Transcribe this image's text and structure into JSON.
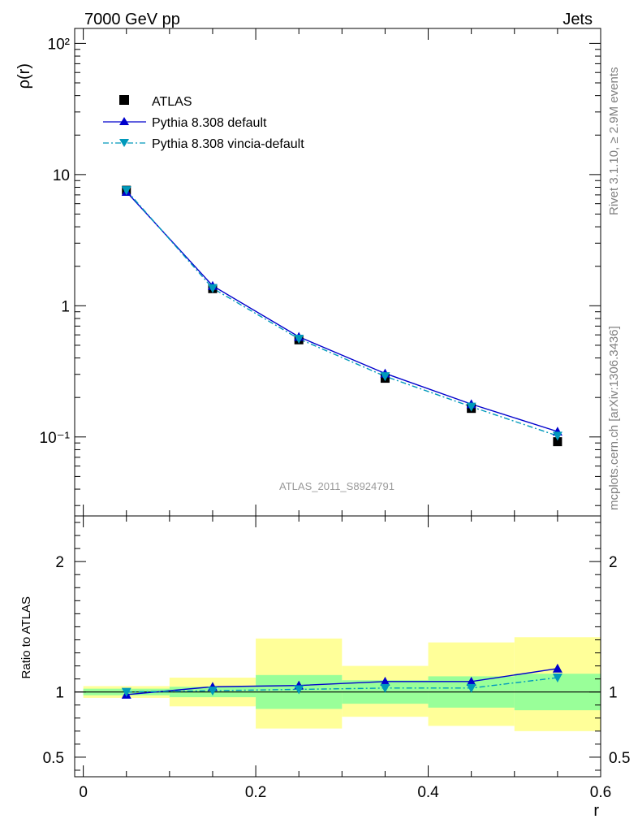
{
  "header": {
    "left": "7000 GeV pp",
    "right": "Jets"
  },
  "side_labels": {
    "rivet": "Rivet 3.1.10, ≥ 2.9M events",
    "source": "mcplots.cern.ch [arXiv:1306.3436]"
  },
  "watermark": "ATLAS_2011_S8924791",
  "colors": {
    "data": "#000000",
    "pythia_default": "#0000cc",
    "pythia_vincia": "#0099bb",
    "band_inner": "#99ff99",
    "band_outer": "#ffff99"
  },
  "chart_data": [
    {
      "type": "line",
      "panel": "main",
      "ylabel": "ρ(r)",
      "xlabel": "",
      "yscale": "log",
      "ylim": [
        0.025,
        130
      ],
      "xlim": [
        -0.01,
        0.6
      ],
      "y_tick_labels": [
        "10⁻¹",
        "1",
        "10",
        "10²"
      ],
      "legend_position": "top-left",
      "x": [
        0.05,
        0.15,
        0.25,
        0.35,
        0.45,
        0.55
      ],
      "series": [
        {
          "name": "ATLAS",
          "marker": "square",
          "values": [
            7.6,
            1.35,
            0.55,
            0.28,
            0.165,
            0.092
          ]
        },
        {
          "name": "Pythia 8.308 default",
          "marker": "triangle-up",
          "values": [
            7.4,
            1.42,
            0.58,
            0.305,
            0.178,
            0.11
          ]
        },
        {
          "name": "Pythia 8.308 vincia-default",
          "marker": "triangle-down",
          "values": [
            7.6,
            1.36,
            0.56,
            0.29,
            0.17,
            0.102
          ]
        }
      ]
    },
    {
      "type": "line",
      "panel": "ratio",
      "ylabel": "Ratio to ATLAS",
      "xlabel": "r",
      "ylim": [
        0.35,
        2.35
      ],
      "xlim": [
        -0.01,
        0.6
      ],
      "x_tick_labels": [
        "0",
        "0.2",
        "0.4",
        "0.6"
      ],
      "y_tick_labels": [
        "0.5",
        "1",
        "2"
      ],
      "x_edges": [
        0.0,
        0.1,
        0.2,
        0.3,
        0.4,
        0.5,
        0.6
      ],
      "band_inner": [
        [
          0.975,
          1.025
        ],
        [
          0.96,
          1.04
        ],
        [
          0.87,
          1.13
        ],
        [
          0.91,
          1.09
        ],
        [
          0.88,
          1.12
        ],
        [
          0.86,
          1.14
        ]
      ],
      "band_outer": [
        [
          0.955,
          1.045
        ],
        [
          0.89,
          1.11
        ],
        [
          0.72,
          1.41
        ],
        [
          0.81,
          1.2
        ],
        [
          0.74,
          1.38
        ],
        [
          0.7,
          1.42
        ]
      ],
      "x": [
        0.05,
        0.15,
        0.25,
        0.35,
        0.45,
        0.55
      ],
      "series": [
        {
          "name": "Pythia 8.308 default",
          "marker": "triangle-up",
          "values": [
            0.98,
            1.04,
            1.05,
            1.08,
            1.08,
            1.18
          ]
        },
        {
          "name": "Pythia 8.308 vincia-default",
          "marker": "triangle-down",
          "values": [
            1.0,
            1.01,
            1.02,
            1.03,
            1.03,
            1.11
          ]
        }
      ]
    }
  ]
}
